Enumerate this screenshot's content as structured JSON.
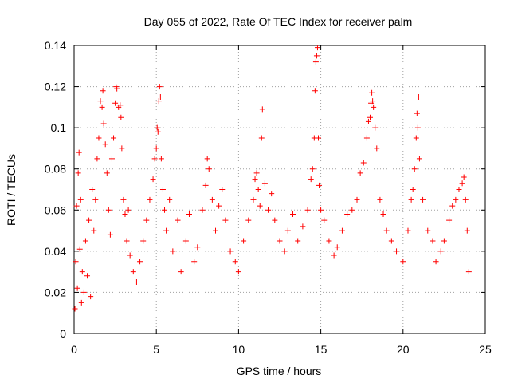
{
  "chart_data": {
    "type": "scatter",
    "title": "Day 055 of 2022, Rate Of TEC Index for receiver palm",
    "xlabel": "GPS time / hours",
    "ylabel": "ROTI / TECUs",
    "xlim": [
      0,
      25
    ],
    "ylim": [
      0,
      0.14
    ],
    "xticks": [
      0,
      5,
      10,
      15,
      20,
      25
    ],
    "yticks": [
      0,
      0.02,
      0.04,
      0.06,
      0.08,
      0.1,
      0.12,
      0.14
    ],
    "xtick_labels": [
      "0",
      "5",
      "10",
      "15",
      "20",
      "25"
    ],
    "ytick_labels": [
      "0",
      "0.02",
      "0.04",
      "0.06",
      "0.08",
      "0.1",
      "0.12",
      "0.14"
    ],
    "grid": true,
    "marker": "+",
    "color": "#ff0000",
    "series": [
      {
        "values": [
          [
            0.05,
            0.012
          ],
          [
            0.1,
            0.035
          ],
          [
            0.15,
            0.062
          ],
          [
            0.2,
            0.022
          ],
          [
            0.25,
            0.078
          ],
          [
            0.3,
            0.088
          ],
          [
            0.35,
            0.041
          ],
          [
            0.4,
            0.065
          ],
          [
            0.45,
            0.015
          ],
          [
            0.5,
            0.03
          ],
          [
            0.6,
            0.02
          ],
          [
            0.7,
            0.045
          ],
          [
            0.8,
            0.028
          ],
          [
            0.9,
            0.055
          ],
          [
            1.0,
            0.018
          ],
          [
            1.1,
            0.07
          ],
          [
            1.2,
            0.05
          ],
          [
            1.3,
            0.065
          ],
          [
            1.4,
            0.085
          ],
          [
            1.5,
            0.095
          ],
          [
            1.6,
            0.113
          ],
          [
            1.7,
            0.11
          ],
          [
            1.75,
            0.118
          ],
          [
            1.8,
            0.102
          ],
          [
            1.9,
            0.092
          ],
          [
            2.0,
            0.078
          ],
          [
            2.1,
            0.06
          ],
          [
            2.2,
            0.048
          ],
          [
            2.3,
            0.085
          ],
          [
            2.4,
            0.095
          ],
          [
            2.5,
            0.112
          ],
          [
            2.55,
            0.12
          ],
          [
            2.6,
            0.119
          ],
          [
            2.7,
            0.11
          ],
          [
            2.8,
            0.111
          ],
          [
            2.85,
            0.105
          ],
          [
            2.9,
            0.09
          ],
          [
            3.0,
            0.065
          ],
          [
            3.1,
            0.058
          ],
          [
            3.2,
            0.045
          ],
          [
            3.3,
            0.06
          ],
          [
            3.4,
            0.038
          ],
          [
            3.6,
            0.03
          ],
          [
            3.8,
            0.025
          ],
          [
            4.0,
            0.035
          ],
          [
            4.2,
            0.045
          ],
          [
            4.4,
            0.055
          ],
          [
            4.6,
            0.065
          ],
          [
            4.8,
            0.075
          ],
          [
            4.9,
            0.085
          ],
          [
            5.0,
            0.09
          ],
          [
            5.05,
            0.1
          ],
          [
            5.1,
            0.098
          ],
          [
            5.15,
            0.113
          ],
          [
            5.2,
            0.12
          ],
          [
            5.25,
            0.115
          ],
          [
            5.3,
            0.085
          ],
          [
            5.4,
            0.07
          ],
          [
            5.5,
            0.06
          ],
          [
            5.6,
            0.05
          ],
          [
            5.8,
            0.065
          ],
          [
            6.0,
            0.04
          ],
          [
            6.3,
            0.055
          ],
          [
            6.5,
            0.03
          ],
          [
            6.8,
            0.045
          ],
          [
            7.0,
            0.058
          ],
          [
            7.3,
            0.035
          ],
          [
            7.5,
            0.042
          ],
          [
            7.8,
            0.06
          ],
          [
            8.0,
            0.072
          ],
          [
            8.1,
            0.085
          ],
          [
            8.2,
            0.08
          ],
          [
            8.4,
            0.065
          ],
          [
            8.6,
            0.05
          ],
          [
            8.8,
            0.062
          ],
          [
            9.0,
            0.07
          ],
          [
            9.2,
            0.055
          ],
          [
            9.5,
            0.04
          ],
          [
            9.8,
            0.035
          ],
          [
            10.0,
            0.03
          ],
          [
            10.3,
            0.045
          ],
          [
            10.6,
            0.055
          ],
          [
            10.9,
            0.065
          ],
          [
            11.0,
            0.075
          ],
          [
            11.1,
            0.078
          ],
          [
            11.2,
            0.07
          ],
          [
            11.3,
            0.062
          ],
          [
            11.4,
            0.095
          ],
          [
            11.45,
            0.109
          ],
          [
            11.6,
            0.073
          ],
          [
            11.8,
            0.06
          ],
          [
            12.0,
            0.068
          ],
          [
            12.2,
            0.055
          ],
          [
            12.5,
            0.045
          ],
          [
            12.8,
            0.04
          ],
          [
            13.0,
            0.05
          ],
          [
            13.3,
            0.058
          ],
          [
            13.6,
            0.045
          ],
          [
            13.9,
            0.052
          ],
          [
            14.2,
            0.06
          ],
          [
            14.4,
            0.075
          ],
          [
            14.5,
            0.08
          ],
          [
            14.6,
            0.095
          ],
          [
            14.65,
            0.118
          ],
          [
            14.7,
            0.132
          ],
          [
            14.75,
            0.135
          ],
          [
            14.8,
            0.139
          ],
          [
            14.85,
            0.095
          ],
          [
            14.9,
            0.072
          ],
          [
            15.0,
            0.06
          ],
          [
            15.2,
            0.055
          ],
          [
            15.5,
            0.045
          ],
          [
            15.8,
            0.038
          ],
          [
            16.0,
            0.042
          ],
          [
            16.3,
            0.05
          ],
          [
            16.6,
            0.058
          ],
          [
            16.9,
            0.06
          ],
          [
            17.2,
            0.065
          ],
          [
            17.4,
            0.078
          ],
          [
            17.6,
            0.083
          ],
          [
            17.8,
            0.095
          ],
          [
            17.9,
            0.103
          ],
          [
            18.0,
            0.105
          ],
          [
            18.05,
            0.112
          ],
          [
            18.1,
            0.117
          ],
          [
            18.15,
            0.113
          ],
          [
            18.2,
            0.11
          ],
          [
            18.3,
            0.1
          ],
          [
            18.4,
            0.09
          ],
          [
            18.6,
            0.065
          ],
          [
            18.8,
            0.058
          ],
          [
            19.0,
            0.05
          ],
          [
            19.3,
            0.045
          ],
          [
            19.6,
            0.04
          ],
          [
            20.0,
            0.035
          ],
          [
            20.3,
            0.05
          ],
          [
            20.5,
            0.065
          ],
          [
            20.6,
            0.07
          ],
          [
            20.7,
            0.08
          ],
          [
            20.8,
            0.095
          ],
          [
            20.85,
            0.107
          ],
          [
            20.9,
            0.1
          ],
          [
            20.95,
            0.115
          ],
          [
            21.0,
            0.085
          ],
          [
            21.2,
            0.065
          ],
          [
            21.5,
            0.05
          ],
          [
            21.8,
            0.045
          ],
          [
            22.0,
            0.035
          ],
          [
            22.3,
            0.04
          ],
          [
            22.5,
            0.045
          ],
          [
            22.8,
            0.055
          ],
          [
            23.0,
            0.062
          ],
          [
            23.2,
            0.065
          ],
          [
            23.4,
            0.07
          ],
          [
            23.6,
            0.073
          ],
          [
            23.7,
            0.076
          ],
          [
            23.8,
            0.065
          ],
          [
            23.9,
            0.05
          ],
          [
            24.0,
            0.03
          ]
        ]
      }
    ]
  }
}
